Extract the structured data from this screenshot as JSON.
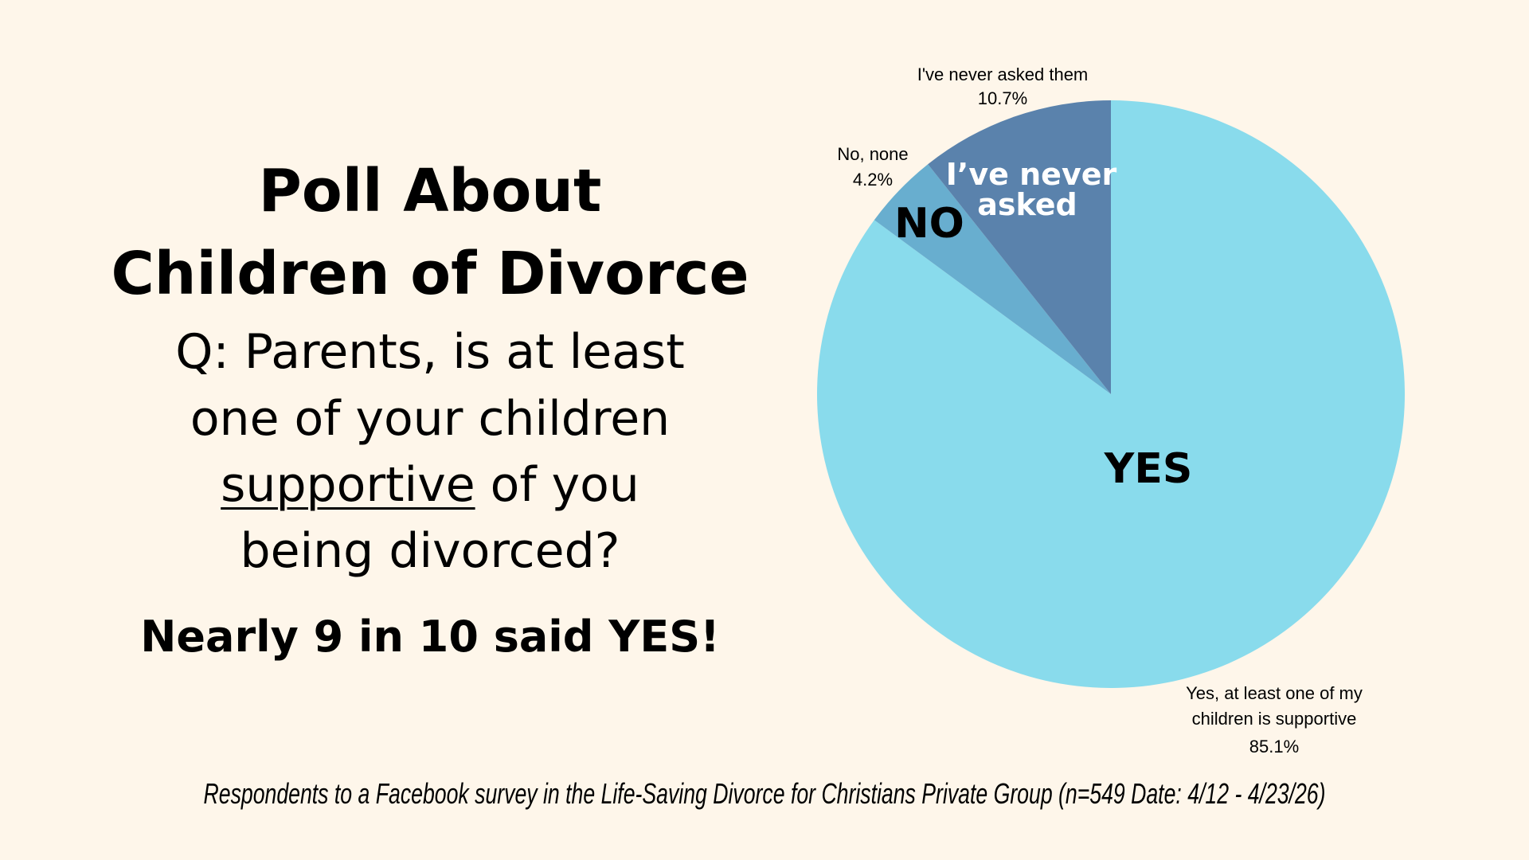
{
  "heading": {
    "line1": "Poll About",
    "line2": "Children of Divorce"
  },
  "question": {
    "line1": "Q: Parents, is at least",
    "line2": "one of your children",
    "line3_underlined": "supportive",
    "line3_rest": " of you",
    "line4": "being divorced?"
  },
  "conclusion": "Nearly 9 in 10 said YES!",
  "footer": "Respondents to a Facebook survey in the Life-Saving Divorce for Christians Private Group (n=549 Date: 4/12 - 4/23/26)",
  "chart_data": {
    "type": "pie",
    "start": "top",
    "direction": "clockwise",
    "slices": [
      {
        "label": "Yes, at least one of my children is supportive",
        "label_lines": [
          "Yes, at least one of my",
          "children is supportive"
        ],
        "value": 85.1,
        "value_label": "85.1%",
        "inner_label": "YES",
        "color": "#89DBEC",
        "inner_color": "#000000"
      },
      {
        "label": "No, none",
        "label_lines": [
          "No, none"
        ],
        "value": 4.2,
        "value_label": "4.2%",
        "inner_label": "NO",
        "color": "#68AECF",
        "inner_color": "#000000"
      },
      {
        "label": "I've never asked them",
        "label_lines": [
          "I've never asked them"
        ],
        "value": 10.7,
        "value_label": "10.7%",
        "inner_label_lines": [
          "I’ve never",
          "asked"
        ],
        "color": "#5A82AC",
        "inner_color": "#FFFFFF"
      }
    ]
  }
}
